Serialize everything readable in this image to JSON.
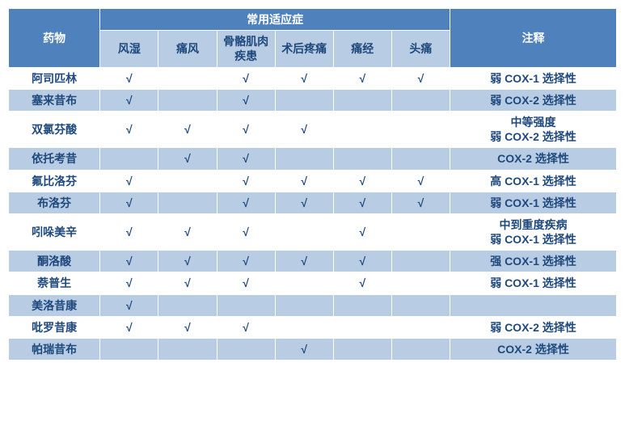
{
  "colors": {
    "header_bg": "#4f81bd",
    "header_fg": "#ffffff",
    "sub_bg": "#b8cce4",
    "text_dark": "#1f497d",
    "row_odd_bg": "#ffffff",
    "row_even_bg": "#b8cce4",
    "border": "#ffffff"
  },
  "check_glyph": "√",
  "header": {
    "drug": "药物",
    "indications_group": "常用适应症",
    "note": "注释",
    "indications": [
      "风湿",
      "痛风",
      "骨骼肌肉疾患",
      "术后疼痛",
      "痛经",
      "头痛"
    ]
  },
  "rows": [
    {
      "drug": "阿司匹林",
      "cells": [
        true,
        false,
        true,
        true,
        true,
        true
      ],
      "note": "弱 COX-1 选择性"
    },
    {
      "drug": "塞来昔布",
      "cells": [
        true,
        false,
        true,
        false,
        false,
        false
      ],
      "note": "弱 COX-2 选择性"
    },
    {
      "drug": "双氯芬酸",
      "cells": [
        true,
        true,
        true,
        true,
        false,
        false
      ],
      "note": "中等强度\n弱 COX-2 选择性"
    },
    {
      "drug": "依托考昔",
      "cells": [
        false,
        true,
        true,
        false,
        false,
        false
      ],
      "note": "COX-2 选择性"
    },
    {
      "drug": "氟比洛芬",
      "cells": [
        true,
        false,
        true,
        true,
        true,
        true
      ],
      "note": "高 COX-1 选择性"
    },
    {
      "drug": "布洛芬",
      "cells": [
        true,
        false,
        true,
        true,
        true,
        true
      ],
      "note": "弱 COX-1 选择性"
    },
    {
      "drug": "吲哚美辛",
      "cells": [
        true,
        true,
        true,
        false,
        true,
        false
      ],
      "note": "中到重度疾病\n弱 COX-1 选择性"
    },
    {
      "drug": "酮洛酸",
      "cells": [
        true,
        true,
        true,
        true,
        true,
        false
      ],
      "note": "强 COX-1 选择性"
    },
    {
      "drug": "萘普生",
      "cells": [
        true,
        true,
        true,
        false,
        true,
        false
      ],
      "note": "弱 COX-1 选择性"
    },
    {
      "drug": "美洛昔康",
      "cells": [
        true,
        false,
        false,
        false,
        false,
        false
      ],
      "note": ""
    },
    {
      "drug": "吡罗昔康",
      "cells": [
        true,
        true,
        true,
        false,
        false,
        false
      ],
      "note": "弱 COX-2 选择性"
    },
    {
      "drug": "帕瑞昔布",
      "cells": [
        false,
        false,
        false,
        true,
        false,
        false
      ],
      "note": "COX-2 选择性"
    }
  ]
}
